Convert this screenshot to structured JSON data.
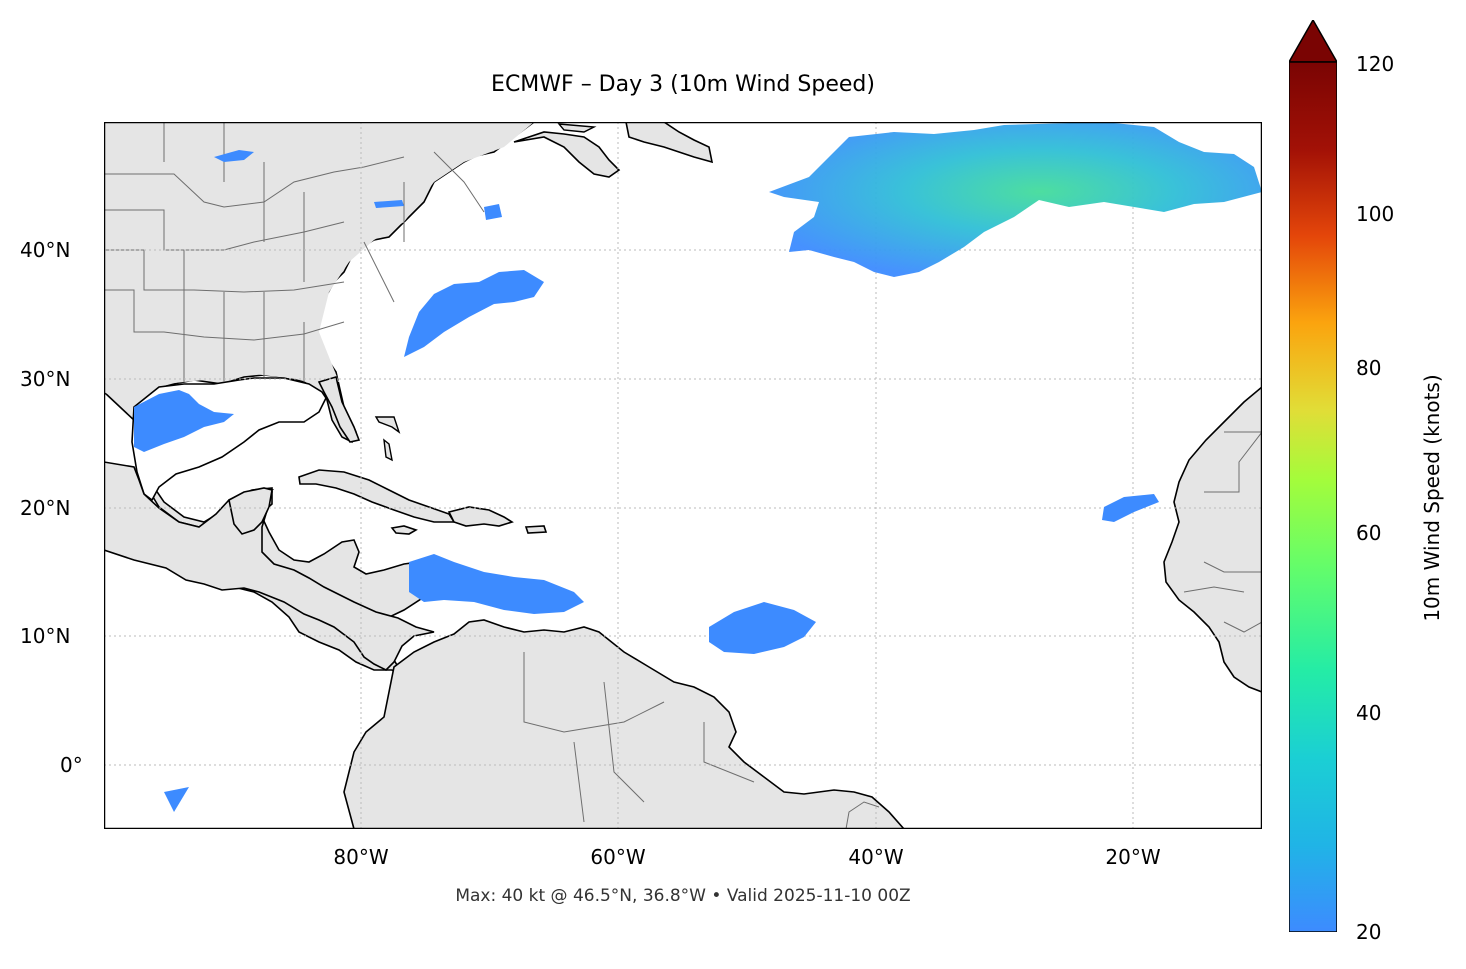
{
  "title": "ECMWF – Day 3 (10m Wind Speed)",
  "footer": "Max: 40 kt @ 46.5°N, 36.8°W • Valid 2025-11-10 00Z",
  "map": {
    "projection": "PlateCarree",
    "lon_range": [
      -100,
      -10
    ],
    "lat_range": [
      -5,
      50
    ],
    "x_ticks": [
      "80°W",
      "60°W",
      "40°W",
      "20°W"
    ],
    "y_ticks": [
      "40°N",
      "30°N",
      "20°N",
      "10°N",
      "0°"
    ],
    "land_color": "#e5e5e5",
    "ocean_color": "#ffffff",
    "coastline_color": "#000000",
    "border_color": "#6e6e6e",
    "grid": "dotted"
  },
  "colorbar": {
    "label": "10m Wind Speed (knots)",
    "ticks": [
      "20",
      "40",
      "60",
      "80",
      "100",
      "120"
    ],
    "range": [
      20,
      120
    ],
    "extend": "max",
    "colormap": "turbo",
    "colors": [
      "#3d8bff",
      "#1bcfd4",
      "#24eca6",
      "#a4fc3b",
      "#e1dd37",
      "#fba40e",
      "#e4460a",
      "#a21106",
      "#7a0403"
    ]
  },
  "wind_areas": [
    {
      "name": "north-atlantic-storm",
      "max_kt": 40
    },
    {
      "name": "gulf-of-mexico"
    },
    {
      "name": "us-east-coast"
    },
    {
      "name": "caribbean-sea"
    },
    {
      "name": "tropical-atlantic"
    },
    {
      "name": "west-africa-coast"
    },
    {
      "name": "great-lakes"
    }
  ]
}
